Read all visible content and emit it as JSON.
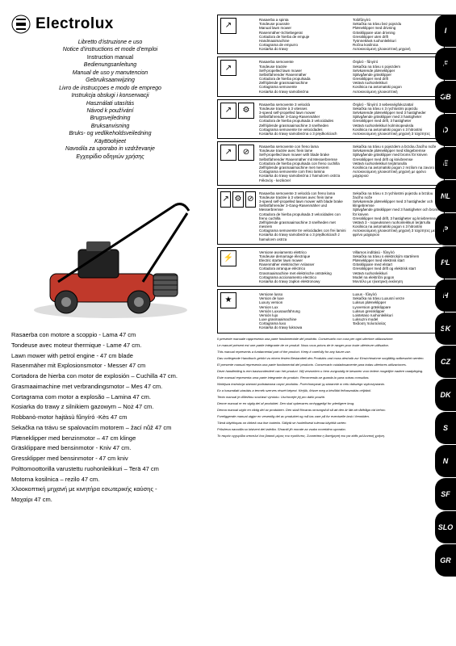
{
  "brand": "Electrolux",
  "manualTitles": [
    "Libretto d'istruzione e uso",
    "Notice d'instructions et mode d'emploi",
    "Instruction manual",
    "Bedienungsanleitung",
    "Manual de uso y manutencion",
    "Gebruiksaanwijzing",
    "Livro de instrucçoes e modo de emprego",
    "Instrukcja obsługi i konserwacji",
    "Használati utasítás",
    "Návod k používání",
    "Brugsvejledning",
    "Bruksanvisning",
    "Bruks- og vedlikeholdsveiledning",
    "Käyttöohjeet",
    "Navodila za uporabo in vzdrževanje",
    "Εγχειρίδιο οδηγιών χρήσης"
  ],
  "productNames": [
    "Rasaerba con motore a scoppio - Lama 47 cm",
    "Tondeuse avec moteur thermique - Lame 47 cm.",
    "Lawn mower with petrol engine - 47 cm blade",
    "Rasenmäher mit Explosionsmotor - Messer 47 cm",
    "Cortadora de hierba con motor de explosión – Cuchilla 47 cm.",
    "Grasmaaimachine met verbrandingsmotor – Mes 47 cm.",
    "Cortagrama com motor a explosão – Lamina 47 cm.",
    "Kosiarka do trawy z silnikiem gazowym – Noż 47 cm.",
    "Robbanò-motor hajtàsù fűnyíró -Kès 47 cm",
    "Sekačka na trávu se spalovacím motorem – žací nůž 47 cm",
    "Plæneklipper med benzinmotor – 47 cm klinge",
    "Gräsklippare med bensinmotor - Kniv 47 cm.",
    "Gressklipper med bensinmotor - 47 cm kniv",
    "Polttomoottorilla varustettu ruohonleikkuri – Terä 47 cm",
    "Motorna kosilnica – rezilo 47 cm.",
    "Χλοοκοπτική μηχανή με κινητήρα εσωτερικής καύσης -",
    "Μαχαίρι 47 cm."
  ],
  "sections": [
    {
      "icons": [
        "↗"
      ],
      "lines": [
        "Rasaerba a spinta",
        "Tondeuse poussée",
        "Manual lawn mower",
        "Rasenmäher-Schiebegerat",
        "Cortadora de hierba de empuje",
        "Handmaaimachine",
        "Cortagrama de empurro",
        "Kosiarka do trawy",
        "Tolòfűnyíró",
        "Sekačka na trávu bez pojezdu",
        "Plæneklipper med drivning",
        "Gräsklippare utan drivning",
        "Gressklipper uten drift",
        "Työnnettävä ruohonleikkuri",
        "Ročna kosilnica",
        "Αυτοκινούμενη χλοοκοπτική μηχανή"
      ]
    },
    {
      "icons": [
        "↗"
      ],
      "lines": [
        "Rasaerba semovente",
        "Tondeuse tractée",
        "Self-propelled lawn mower",
        "Selbstfahrender Rasenmäher",
        "Cortadora de hierba propulsada",
        "Zelfrijdende grasmaaimachine",
        "Cortagrama semovente",
        "Kosiarka do trawy samobieżna",
        "Önjáró - fűnyíró",
        "Sekačka na trávu s pojezdem",
        "Selvkørende plæneklipper",
        "Självgående gräsklipper",
        "Gressklipper med drift",
        "Vetävä ruohonleikkuri",
        "Kosilnica na avtomatski pogon",
        "Αυτοκινούμενη χλοοκοπτική"
      ]
    },
    {
      "icons": [
        "↗",
        "⚙"
      ],
      "lines": [
        "Rasaerba semovente 3 velocità",
        "Tondeuse tractée à 3 vitesses",
        "3-speed self-propelled lawn mower",
        "Selbstfahrender 3-Gang-Rasenmäher",
        "Cortadora de hierba propulsada 3 velocidades",
        "Zelfrijdende grasmaaimachine 3 snelheden",
        "Cortagrama semovente tre velocidades",
        "Kosiarka do trawy samobieżna o 3 prędkościach",
        "Önjáró - fűnyíró 3 sebességfokozattal",
        "Sekačka na trávu s 3 rychlostmi pojezdu",
        "Selvkørende plæneklipper med 3 hastigheder",
        "Självgående gräsklipper med 3 hastigheter",
        "Gressklipper med drift, 3 hastigheter",
        "Vetävä ruohonleikkuri kolminopeuksla",
        "Kosilnica na avtomatski pogon s 3 hitrostmi",
        "Αυτοκινούμενη χλοοκοπτική μηχανή 3 ταχύτητες"
      ]
    },
    {
      "icons": [
        "↗",
        "⊘"
      ],
      "lines": [
        "Rasaerba semovente con freno lama",
        "Tondeuse tractée avec frein lame",
        "Self-propelled lawn mower with blade brake",
        "Selbstfahrender Rasenmäher mit Messerbremse",
        "Cortadora de hierba propulsada con freno cuchilla",
        "Zelfrijdende grasmaaimachine met mesrem",
        "Cortagrama semovente com freio lamina",
        "Kosiarka do trawy samobieżna z hamulcem ostrza",
        "Fékövóş - kezikörel",
        "Sekačka na trávu s pojezdem a brzdou žacího nože",
        "Selvkørende plæneklipper med klingebremse",
        "Självgående gräsklipper med broms för kniven",
        "Gressklipper med drift og knivbremse",
        "Vetävä ruohonleikkuri terjärrarulla",
        "Kosilnica na avtomatski pogon z rezilom na zavoro",
        "Αυτοκινούμενη χλοοκοπτική μηχανή με φρένο μαχαιριού"
      ]
    },
    {
      "icons": [
        "↗",
        "⚙",
        "⊘"
      ],
      "lines": [
        "Rasaerba semovente 3 velocità con freno lama",
        "Tondeuse tractée à 3 vitesses avec frein lame",
        "3-speed self-propelled lawn mower with blade brake",
        "Selbstfahrender 3-Gang-Rasenmäher und Messerbremse",
        "Cortadora de hierba propulsada 3 velocidades con freno cuchilla",
        "Zelfrijdende grasmaaimachine 3 snelheden met mesrem",
        "Cortagrama semovente tre velocidades con frei lamini",
        "Kosiarka do trawy samobieżna o 3 prędkościach z hamulcem ostrza",
        "Sekačka na trávu s 3 rychlostmi pojezdu a brzdou žacího nože",
        "Selvkørende plæneklipper med 3 hastigheder och klingebremse",
        "Självgående gräsklipper med 3 hastigheter och broms för kniven",
        "Gressklipper med drift, 3 hastigheter og knivbremse",
        "Vetävä 3 - nopeuksinen ruohonleikkuri terjärrulla",
        "Kosilnica na avtomatski pogon s 3 hitrostmi",
        "Αυτοκινούμενη χλοοκοπτική μηχανή 3 ταχύτητες με φρένο μαχαιριού"
      ]
    },
    {
      "icons": [
        "⚡"
      ],
      "lines": [
        "Versione avviamento elettrico",
        "Tondeuse demarrage électrique",
        "Electric starter lawn mower",
        "Rasenmäher elektrischer Anlasser",
        "Cortadora arranque eléctrico",
        "Grasmaaimachine met elektrische ontsteking",
        "Cortagrama accionamento electrico",
        "Kosiarka do trawy zapłon elektronowy",
        "Villamos indítású - fűnyíró",
        "Sekačka na trávu s elektrickým startérem",
        "Plæneklipper med elektrisk start",
        "Gräsklippare med elstart",
        "Gressklipper med drift og elektrisk start",
        "Vetävä ruohonleikkuri",
        "Model na električni pogon",
        "Μοντέλο με ηλεκτρική εκκίνηση"
      ]
    },
    {
      "icons": [
        "★"
      ],
      "lines": [
        "Versione lusso",
        "Version de luxe",
        "Luxury version",
        "Version Lux",
        "Versión Luxusausführung",
        "Versión lujo",
        "Luxe grasmaaimachine",
        "Cortagrama luxo",
        "Kosiarka do trawy luksowa",
        "Luxus - fűnyíró",
        "Sekačka na trávu Luxusní verze",
        "Luksus plæneklipper",
        "Lyxversion gräsklippare",
        "Luksus gressklipper",
        "Loistetaso ruohonleikkuri",
        "Luksuzni model",
        "Έκδοση πολυτελείας"
      ]
    }
  ],
  "langTabs": [
    "I",
    "F",
    "GB",
    "D",
    "E",
    "NL",
    "P",
    "PL",
    "H",
    "SK",
    "CZ",
    "DK",
    "S",
    "N",
    "SF",
    "SLO",
    "GR"
  ],
  "finePrint": [
    "Il presente manuale rappresenta una parte fondamentale del prodotto. Conservarlo con cura per ogni ulteriore utilizzazione.",
    "Le manuel présent est une partie intégrante de ce produit. Nous vous prions de le ranger pour toute ultérieure utilisation.",
    "This manual represents a fundamental part of the product. Keep it carefully for any future use.",
    "Das vorliegende Handbuch gehört zu einem festen Bestandteil des Produkts und muss deshalb zur Einsichtnahme sorgfältig aufbewahrt werden.",
    "El presente manual representa una parte fundamental del producto. Conservarlo cuidadosamente para todas ulteriores utilizaciones.",
    "Deze handleiding is een basisonderdeel van het product. Wij verzoeken u hem zorgvuldig te bewaren voor iedere mogelijke nadere raadpleging.",
    "Este manual representa uma parte integrante do produto. Recomenda-se guarda-lo para outras consultas.",
    "Niniejsza instrukcja stanowi podstawowa część produktu. Przechowywać ją starannie w celu dalszego wykorzystania.",
    "Ez a használati utasítás a termék szerves részét képezi. Kérjük, őrizze meg a későbbi felhasználás céljából.",
    "Tento manuál je důležitou součástí výrobku. Uschovejte jej pro další použití.",
    "Denne manual er en vigtig del af produktet. Den skal opbevares omhyggeligt for yderligere brug.",
    "Denna manual utgör en viktig del av produkten. Den skall förvaras omsorgsfull så att den är lätt att rådfråga vid behov.",
    "Foreliggende manual utgjør en vesentlig del av produktet og må tas vare på for eventuelle bruk i fremtiden.",
    "Tämä käyttöopas on tärkeä osa itse tuotetta. Säilytä se huolellisesti tulevaa käyttöä varten.",
    "Priložena navodila so bistveni del izdelka. Shraniti jih morate za vsako morebitno uporabo.",
    "Το παρόν εγχειρίδιο αποτελεί ένα βασικό μέρος του προϊόντος. Συνιστάται η διατήρησή του για κάθε μελλοντική χρήση."
  ]
}
